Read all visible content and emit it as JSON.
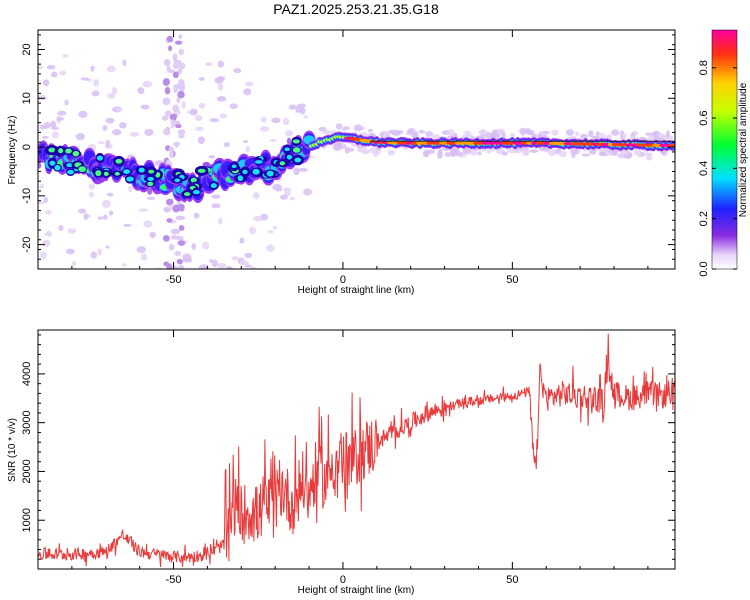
{
  "title": "PAZ1.2025.253.21.35.G18",
  "chart_data": [
    {
      "type": "heatmap",
      "name": "spectrogram",
      "xlabel": "Height of straight line (km)",
      "ylabel": "Frequency (Hz)",
      "xlim": [
        -90,
        98
      ],
      "ylim": [
        -25,
        24
      ],
      "xticks": [
        -50,
        0,
        50
      ],
      "yticks": [
        -20,
        -10,
        0,
        10,
        20
      ],
      "colorbar": {
        "label": "Normalized spectral amplitude",
        "range": [
          0,
          0.95
        ],
        "ticks": [
          0.0,
          0.2,
          0.4,
          0.6,
          0.8
        ],
        "tick_labels": [
          "0.0",
          "0.2",
          "0.4",
          "0.6",
          "0.8"
        ]
      },
      "ridge": {
        "x": [
          -90,
          -80,
          -70,
          -60,
          -50,
          -45,
          -40,
          -30,
          -20,
          -15,
          -10,
          -5,
          0,
          5,
          10,
          20,
          40,
          60,
          80,
          98
        ],
        "freq": [
          -2,
          -3,
          -4,
          -6,
          -7,
          -9,
          -6,
          -5,
          -4,
          -1,
          0,
          1.5,
          2,
          1.5,
          1,
          0.8,
          0.8,
          0.8,
          0.5,
          0.3
        ]
      }
    },
    {
      "type": "line",
      "name": "snr",
      "xlabel": "Height of straight line (km)",
      "ylabel": "SNR (10 * v/v)",
      "xlim": [
        -90,
        98
      ],
      "ylim": [
        0,
        4900
      ],
      "xticks": [
        -50,
        0,
        50
      ],
      "yticks": [
        1000,
        2000,
        3000,
        4000
      ],
      "series": [
        {
          "name": "SNR",
          "color": "#e83a3a",
          "x": [
            -90,
            -80,
            -70,
            -65,
            -60,
            -50,
            -45,
            -40,
            -35,
            -32,
            -30,
            -28,
            -25,
            -23,
            -20,
            -18,
            -15,
            -12,
            -10,
            -8,
            -5,
            -3,
            0,
            3,
            5,
            8,
            10,
            15,
            20,
            25,
            30,
            35,
            40,
            45,
            50,
            53,
            55,
            56,
            57,
            58,
            60,
            65,
            70,
            75,
            77,
            78,
            80,
            85,
            90,
            95,
            98
          ],
          "y": [
            300,
            300,
            350,
            700,
            350,
            250,
            250,
            300,
            500,
            1300,
            1100,
            1200,
            1100,
            1400,
            1200,
            1700,
            1300,
            1800,
            1500,
            2000,
            1800,
            2200,
            2200,
            2200,
            2400,
            2500,
            2600,
            2800,
            3000,
            3200,
            3300,
            3400,
            3450,
            3500,
            3550,
            3600,
            3650,
            2500,
            1900,
            4000,
            3500,
            3600,
            3550,
            3500,
            3400,
            4400,
            3600,
            3500,
            3600,
            3550,
            3700
          ]
        }
      ]
    }
  ]
}
